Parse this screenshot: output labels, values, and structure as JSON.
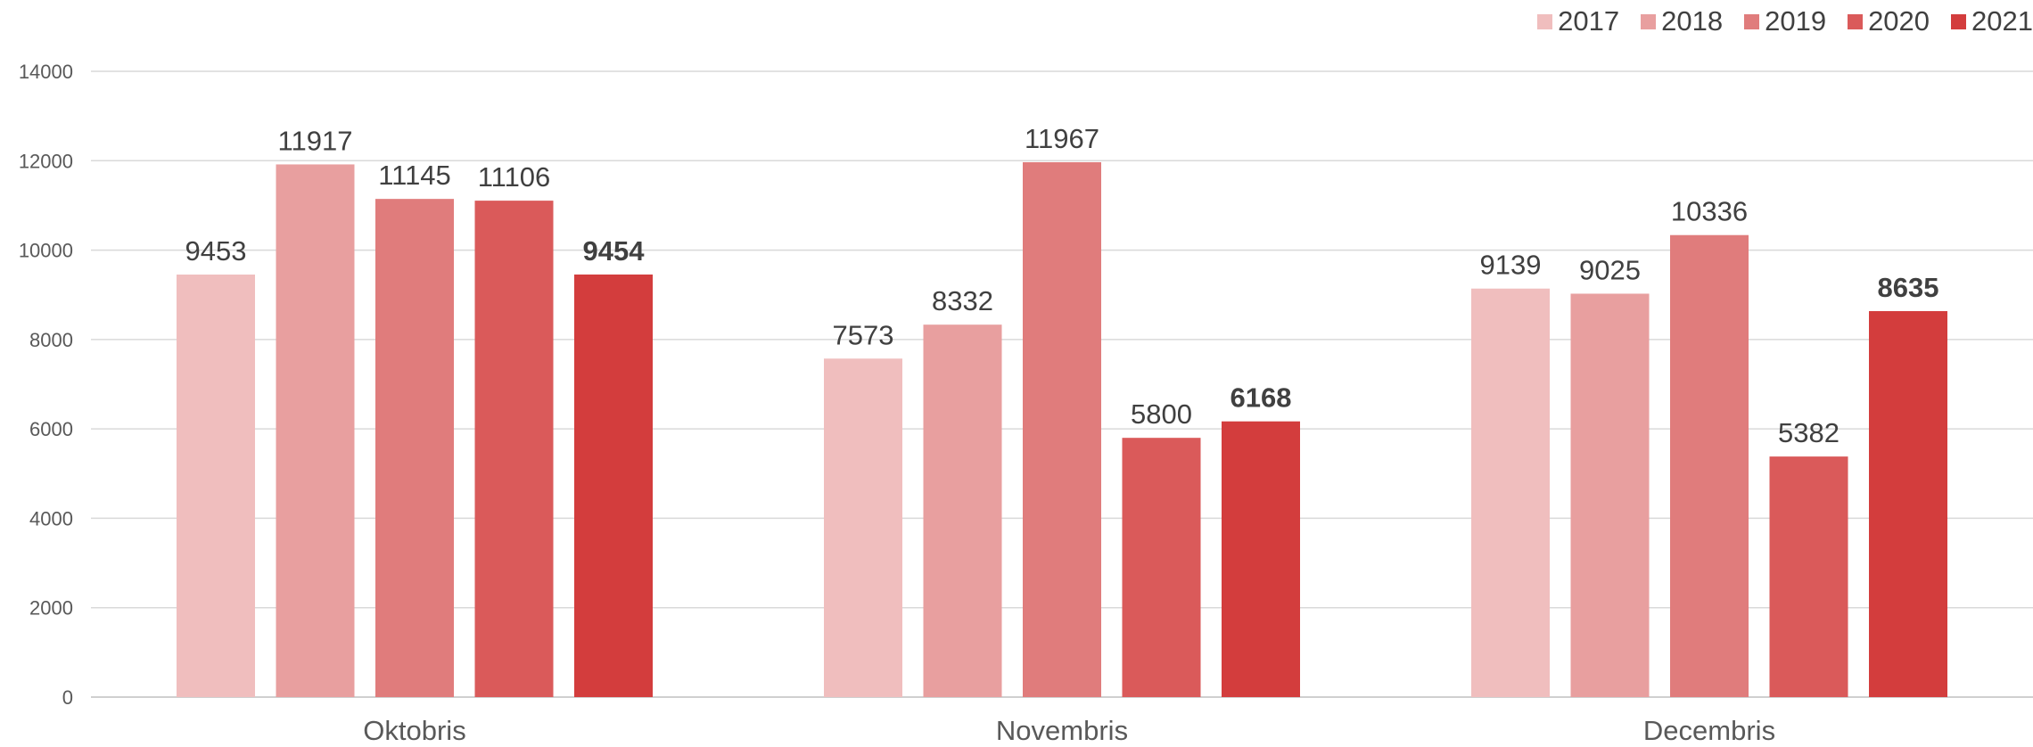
{
  "chart_data": {
    "type": "bar",
    "categories": [
      "Oktobris",
      "Novembris",
      "Decembris"
    ],
    "series": [
      {
        "name": "2017",
        "color": "#f0bebe",
        "values": [
          9453,
          7573,
          9139
        ]
      },
      {
        "name": "2018",
        "color": "#e89f9f",
        "values": [
          11917,
          8332,
          9025
        ]
      },
      {
        "name": "2019",
        "color": "#e07c7c",
        "values": [
          11145,
          11967,
          10336
        ]
      },
      {
        "name": "2020",
        "color": "#da5a5a",
        "values": [
          11106,
          5800,
          5382
        ]
      },
      {
        "name": "2021",
        "color": "#d33d3d",
        "values": [
          9454,
          6168,
          8635
        ],
        "bold_labels": true
      }
    ],
    "ylim": [
      0,
      14000
    ],
    "yticks": [
      0,
      2000,
      4000,
      6000,
      8000,
      10000,
      12000,
      14000
    ],
    "grid": true,
    "legend_position": "top-right"
  }
}
